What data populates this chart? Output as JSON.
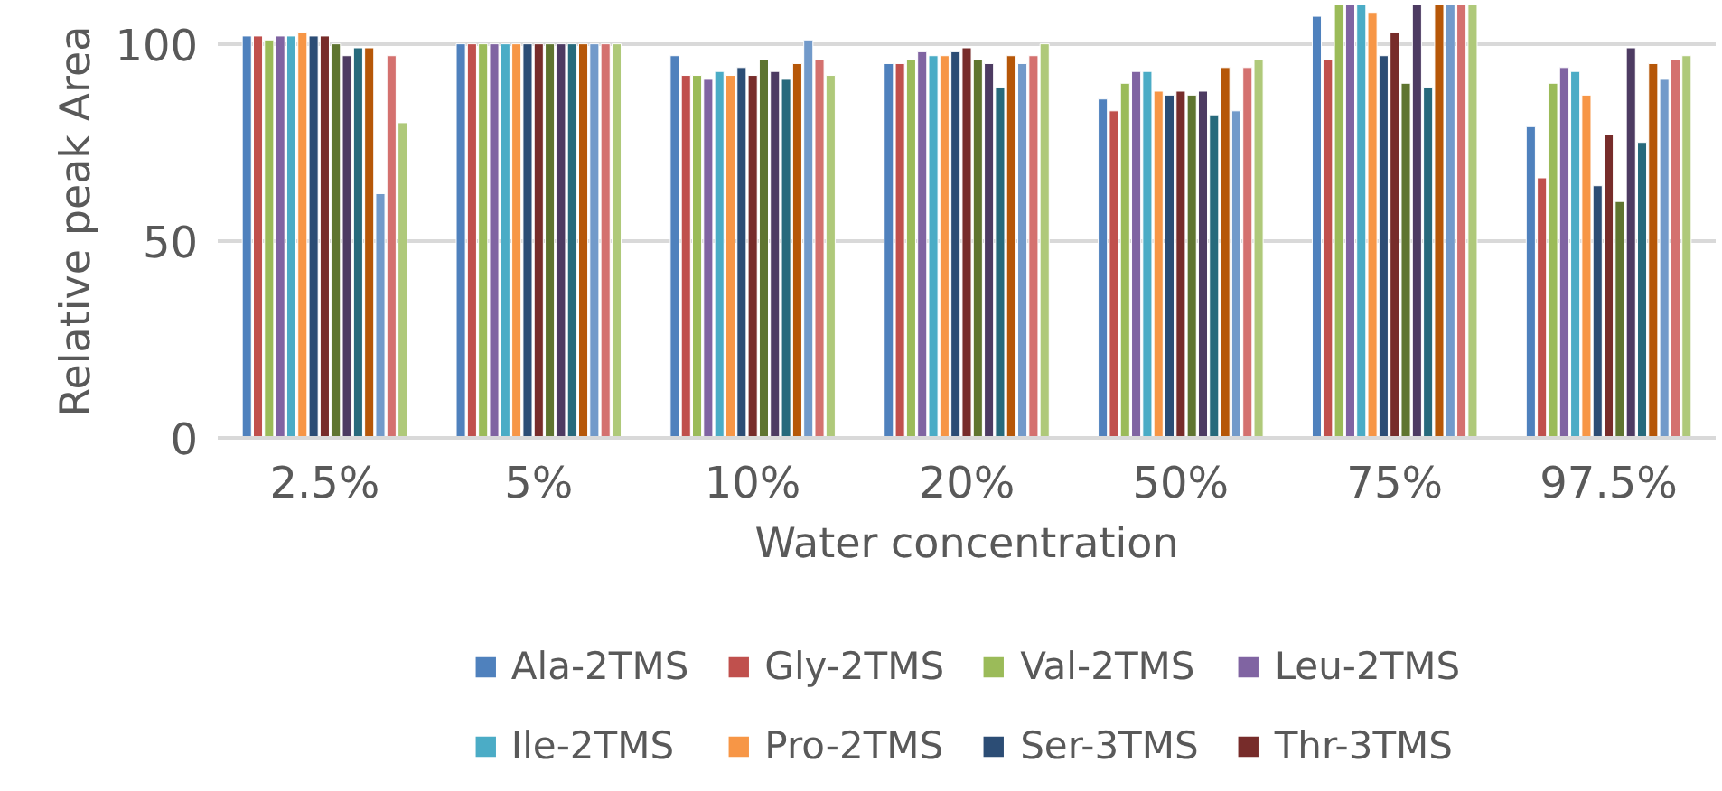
{
  "chart_data": {
    "type": "bar",
    "xlabel": "Water concentration",
    "ylabel": "Relative peak Area",
    "categories": [
      "2.5%",
      "5%",
      "10%",
      "20%",
      "50%",
      "75%",
      "97.5%"
    ],
    "ylim": [
      0,
      110
    ],
    "yticks": [
      0,
      50,
      100
    ],
    "grid": "y",
    "legend": "bottom",
    "series": [
      {
        "name": "Ala-2TMS",
        "color": "#4f81bd",
        "values": [
          102,
          100,
          97,
          95,
          86,
          107,
          79
        ]
      },
      {
        "name": "Gly-2TMS",
        "color": "#c0504d",
        "values": [
          102,
          100,
          92,
          95,
          83,
          96,
          66
        ]
      },
      {
        "name": "Val-2TMS",
        "color": "#9bbb59",
        "values": [
          101,
          100,
          92,
          96,
          90,
          110,
          90
        ]
      },
      {
        "name": "Leu-2TMS",
        "color": "#8064a2",
        "values": [
          102,
          100,
          91,
          98,
          93,
          110,
          94
        ]
      },
      {
        "name": "Ile-2TMS",
        "color": "#4bacc6",
        "values": [
          102,
          100,
          93,
          97,
          93,
          110,
          93
        ]
      },
      {
        "name": "Pro-2TMS",
        "color": "#f79646",
        "values": [
          103,
          100,
          92,
          97,
          88,
          108,
          87
        ]
      },
      {
        "name": "Ser-3TMS",
        "color": "#2c4d75",
        "values": [
          102,
          100,
          94,
          98,
          87,
          97,
          64
        ]
      },
      {
        "name": "Thr-3TMS",
        "color": "#772c2a",
        "values": [
          102,
          100,
          92,
          99,
          88,
          103,
          77
        ]
      },
      {
        "color": "#5f7530",
        "values": [
          100,
          100,
          96,
          96,
          87,
          90,
          60
        ]
      },
      {
        "color": "#4d3b62",
        "values": [
          97,
          100,
          93,
          95,
          88,
          110,
          99
        ]
      },
      {
        "color": "#276a7c",
        "values": [
          99,
          100,
          91,
          89,
          82,
          89,
          75
        ]
      },
      {
        "color": "#b65708",
        "values": [
          99,
          100,
          95,
          97,
          94,
          110,
          95
        ]
      },
      {
        "color": "#729aca",
        "values": [
          62,
          100,
          101,
          95,
          83,
          110,
          91
        ]
      },
      {
        "color": "#d4716f",
        "values": [
          97,
          100,
          96,
          97,
          94,
          110,
          96
        ]
      },
      {
        "color": "#afc97a",
        "values": [
          80,
          100,
          92,
          100,
          96,
          110,
          97
        ]
      }
    ]
  }
}
